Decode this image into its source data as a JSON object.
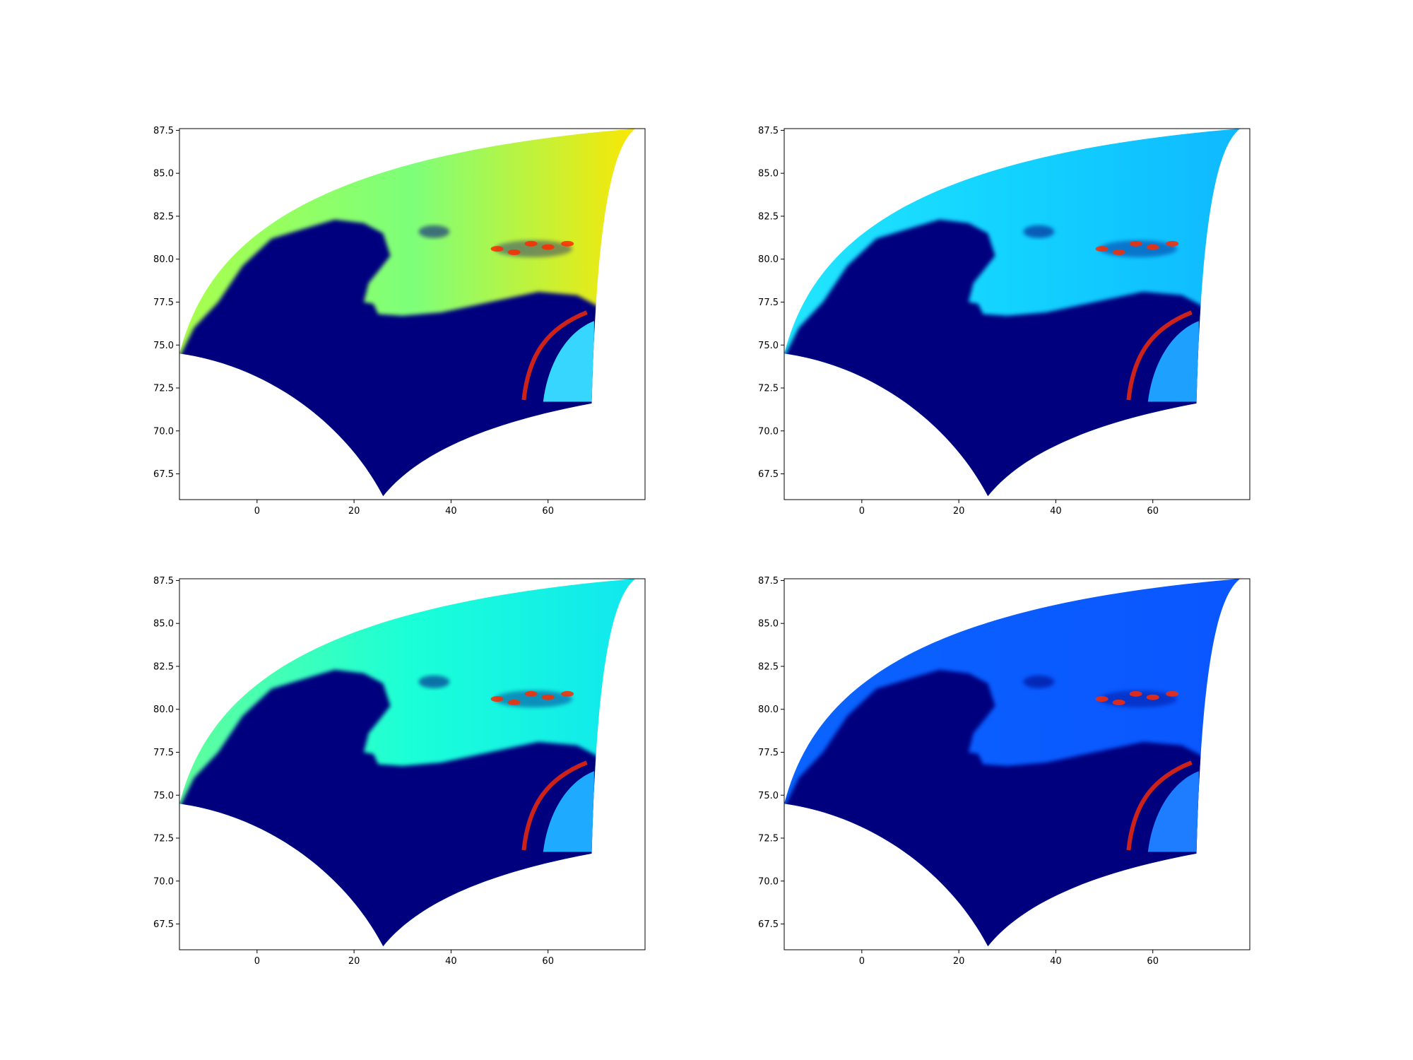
{
  "chart_data": [
    {
      "type": "heatmap",
      "colormap": "jet",
      "xlim": [
        -16,
        80
      ],
      "ylim": [
        66,
        87.6
      ],
      "x_ticks": [
        "0",
        "20",
        "40",
        "60"
      ],
      "y_ticks": [
        "67.5",
        "70.0",
        "72.5",
        "75.0",
        "77.5",
        "80.0",
        "82.5",
        "85.0",
        "87.5"
      ],
      "open_water_color": "#7dff7a",
      "west_color": "#a9ff4c",
      "east_color": "#ffe600",
      "ice_color": "#00007f",
      "channel_color": "#36d6ff",
      "hotspot_color": "#ff2a00"
    },
    {
      "type": "heatmap",
      "colormap": "jet",
      "xlim": [
        -16,
        80
      ],
      "ylim": [
        66,
        87.6
      ],
      "x_ticks": [
        "0",
        "20",
        "40",
        "60"
      ],
      "y_ticks": [
        "67.5",
        "70.0",
        "72.5",
        "75.0",
        "77.5",
        "80.0",
        "82.5",
        "85.0",
        "87.5"
      ],
      "open_water_color": "#12d2ff",
      "west_color": "#22e6ff",
      "east_color": "#0fb8ff",
      "ice_color": "#00007f",
      "channel_color": "#1ea0ff",
      "hotspot_color": "#ff2a00"
    },
    {
      "type": "heatmap",
      "colormap": "jet",
      "xlim": [
        -16,
        80
      ],
      "ylim": [
        66,
        87.6
      ],
      "x_ticks": [
        "0",
        "20",
        "40",
        "60"
      ],
      "y_ticks": [
        "67.5",
        "70.0",
        "72.5",
        "75.0",
        "77.5",
        "80.0",
        "82.5",
        "85.0",
        "87.5"
      ],
      "open_water_color": "#1affd8",
      "west_color": "#60ff9c",
      "east_color": "#10e6ef",
      "ice_color": "#00007f",
      "channel_color": "#1eaaff",
      "hotspot_color": "#ff2a00"
    },
    {
      "type": "heatmap",
      "colormap": "jet",
      "xlim": [
        -16,
        80
      ],
      "ylim": [
        66,
        87.6
      ],
      "x_ticks": [
        "0",
        "20",
        "40",
        "60"
      ],
      "y_ticks": [
        "67.5",
        "70.0",
        "72.5",
        "75.0",
        "77.5",
        "80.0",
        "82.5",
        "85.0",
        "87.5"
      ],
      "open_water_color": "#0a5cff",
      "west_color": "#0a64ff",
      "east_color": "#0a56ff",
      "ice_color": "#00007f",
      "channel_color": "#1e7cff",
      "hotspot_color": "#ff2a00"
    }
  ]
}
